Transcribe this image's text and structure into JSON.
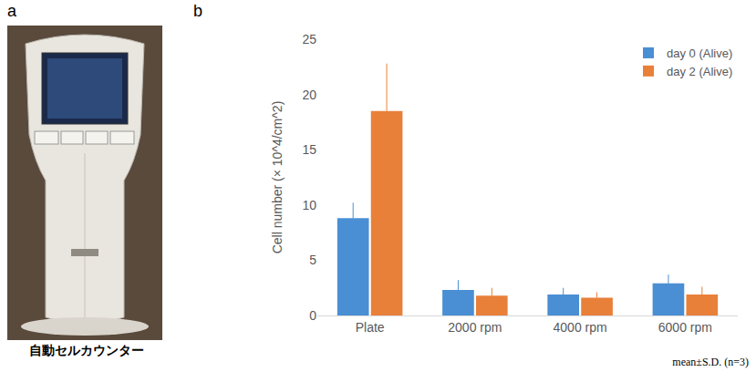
{
  "panel_a": {
    "label": "a",
    "caption": "自動セルカウンター"
  },
  "chart_data": {
    "label": "b",
    "type": "bar",
    "y_label": "Cell number (× 10^4/cm^2)",
    "categories": [
      "Plate",
      "2000 rpm",
      "4000 rpm",
      "6000 rpm"
    ],
    "series": [
      {
        "name": "day 0 (Alive)",
        "color": "#4a8fd3",
        "values": [
          8.8,
          2.3,
          1.9,
          2.9
        ],
        "errors": [
          1.4,
          0.9,
          0.6,
          0.8
        ]
      },
      {
        "name": "day 2 (Alive)",
        "color": "#e8803a",
        "values": [
          18.5,
          1.8,
          1.6,
          1.9
        ],
        "errors": [
          4.3,
          0.7,
          0.5,
          0.7
        ]
      }
    ],
    "ylim": [
      0,
      25
    ],
    "yticks": [
      0,
      5,
      10,
      15,
      20,
      25
    ],
    "grid": false,
    "legend": "upper right",
    "note": "mean±S.D. (n=3)"
  }
}
